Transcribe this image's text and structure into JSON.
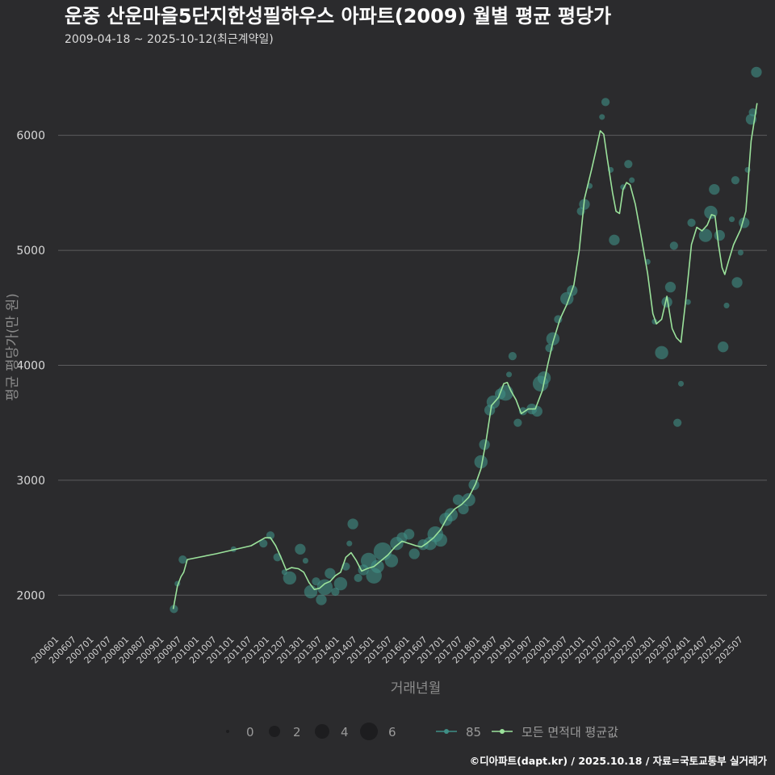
{
  "chart_data": {
    "type": "scatter",
    "title": "운중 산운마을5단지한성필하우스 아파트(2009) 월별 평균 평당가",
    "subtitle": "2009-04-18 ~ 2025-10-12(최근계약일)",
    "xlabel": "거래년월",
    "ylabel": "평균 평당가(만 원)",
    "yticks": [
      2000,
      3000,
      4000,
      5000,
      6000
    ],
    "ylim": [
      1700,
      6700
    ],
    "xlim": [
      2006.0,
      2026.2
    ],
    "xticks": [
      "200601",
      "200607",
      "200701",
      "200707",
      "200801",
      "200807",
      "200901",
      "200907",
      "201001",
      "201007",
      "201101",
      "201107",
      "201201",
      "201207",
      "201301",
      "201307",
      "201401",
      "201407",
      "201501",
      "201507",
      "201601",
      "201607",
      "201701",
      "201707",
      "201801",
      "201807",
      "201901",
      "201907",
      "202001",
      "202007",
      "202101",
      "202107",
      "202201",
      "202207",
      "202301",
      "202307",
      "202401",
      "202407",
      "202501",
      "202507"
    ],
    "grid": "horizontal",
    "colors": {
      "background": "#2b2b2d",
      "grid": "#5c5c5e",
      "points": "#3f8f86",
      "line": "#9be29b",
      "title": "#ffffff"
    },
    "size_legend": {
      "values": [
        "0",
        "2",
        "4",
        "6"
      ]
    },
    "legend": {
      "series": "85",
      "average_line": "모든 면적대 평균값",
      "position": "bottom"
    },
    "series": [
      {
        "name": "85",
        "points": [
          {
            "x": 2009.3,
            "y": 1880,
            "n": 2
          },
          {
            "x": 2009.4,
            "y": 2100,
            "n": 1
          },
          {
            "x": 2009.55,
            "y": 2310,
            "n": 2
          },
          {
            "x": 2011.0,
            "y": 2400,
            "n": 1
          },
          {
            "x": 2011.85,
            "y": 2450,
            "n": 2
          },
          {
            "x": 2012.05,
            "y": 2520,
            "n": 2
          },
          {
            "x": 2012.25,
            "y": 2330,
            "n": 2
          },
          {
            "x": 2012.45,
            "y": 2200,
            "n": 1
          },
          {
            "x": 2012.6,
            "y": 2150,
            "n": 4
          },
          {
            "x": 2012.9,
            "y": 2400,
            "n": 3
          },
          {
            "x": 2013.05,
            "y": 2300,
            "n": 1
          },
          {
            "x": 2013.2,
            "y": 2030,
            "n": 4
          },
          {
            "x": 2013.35,
            "y": 2120,
            "n": 2
          },
          {
            "x": 2013.5,
            "y": 1960,
            "n": 3
          },
          {
            "x": 2013.6,
            "y": 2070,
            "n": 5
          },
          {
            "x": 2013.75,
            "y": 2190,
            "n": 3
          },
          {
            "x": 2013.9,
            "y": 2030,
            "n": 2
          },
          {
            "x": 2014.05,
            "y": 2100,
            "n": 4
          },
          {
            "x": 2014.2,
            "y": 2250,
            "n": 2
          },
          {
            "x": 2014.3,
            "y": 2450,
            "n": 1
          },
          {
            "x": 2014.4,
            "y": 2620,
            "n": 3
          },
          {
            "x": 2014.55,
            "y": 2150,
            "n": 2
          },
          {
            "x": 2014.7,
            "y": 2220,
            "n": 3
          },
          {
            "x": 2014.85,
            "y": 2300,
            "n": 5
          },
          {
            "x": 2015.0,
            "y": 2170,
            "n": 5
          },
          {
            "x": 2015.1,
            "y": 2250,
            "n": 4
          },
          {
            "x": 2015.25,
            "y": 2380,
            "n": 6
          },
          {
            "x": 2015.5,
            "y": 2300,
            "n": 4
          },
          {
            "x": 2015.65,
            "y": 2450,
            "n": 4
          },
          {
            "x": 2015.8,
            "y": 2500,
            "n": 3
          },
          {
            "x": 2016.0,
            "y": 2530,
            "n": 3
          },
          {
            "x": 2016.15,
            "y": 2360,
            "n": 3
          },
          {
            "x": 2016.4,
            "y": 2440,
            "n": 3
          },
          {
            "x": 2016.6,
            "y": 2450,
            "n": 4
          },
          {
            "x": 2016.75,
            "y": 2530,
            "n": 5
          },
          {
            "x": 2016.9,
            "y": 2480,
            "n": 4
          },
          {
            "x": 2017.05,
            "y": 2660,
            "n": 4
          },
          {
            "x": 2017.2,
            "y": 2700,
            "n": 4
          },
          {
            "x": 2017.4,
            "y": 2830,
            "n": 3
          },
          {
            "x": 2017.55,
            "y": 2750,
            "n": 3
          },
          {
            "x": 2017.7,
            "y": 2830,
            "n": 4
          },
          {
            "x": 2017.85,
            "y": 2960,
            "n": 3
          },
          {
            "x": 2018.05,
            "y": 3160,
            "n": 4
          },
          {
            "x": 2018.15,
            "y": 3310,
            "n": 3
          },
          {
            "x": 2018.3,
            "y": 3610,
            "n": 3
          },
          {
            "x": 2018.4,
            "y": 3680,
            "n": 4
          },
          {
            "x": 2018.6,
            "y": 3750,
            "n": 3
          },
          {
            "x": 2018.75,
            "y": 3760,
            "n": 5
          },
          {
            "x": 2018.85,
            "y": 3920,
            "n": 1
          },
          {
            "x": 2018.95,
            "y": 4080,
            "n": 2
          },
          {
            "x": 2019.1,
            "y": 3500,
            "n": 2
          },
          {
            "x": 2019.25,
            "y": 3600,
            "n": 2
          },
          {
            "x": 2019.5,
            "y": 3620,
            "n": 3
          },
          {
            "x": 2019.65,
            "y": 3600,
            "n": 3
          },
          {
            "x": 2019.75,
            "y": 3840,
            "n": 5
          },
          {
            "x": 2019.85,
            "y": 3890,
            "n": 4
          },
          {
            "x": 2020.0,
            "y": 4150,
            "n": 2
          },
          {
            "x": 2020.1,
            "y": 4230,
            "n": 4
          },
          {
            "x": 2020.25,
            "y": 4400,
            "n": 2
          },
          {
            "x": 2020.5,
            "y": 4580,
            "n": 4
          },
          {
            "x": 2020.65,
            "y": 4650,
            "n": 3
          },
          {
            "x": 2020.9,
            "y": 5340,
            "n": 2
          },
          {
            "x": 2021.0,
            "y": 5400,
            "n": 3
          },
          {
            "x": 2021.15,
            "y": 5560,
            "n": 1
          },
          {
            "x": 2021.5,
            "y": 6160,
            "n": 1
          },
          {
            "x": 2021.6,
            "y": 6290,
            "n": 2
          },
          {
            "x": 2021.75,
            "y": 5700,
            "n": 1
          },
          {
            "x": 2021.85,
            "y": 5090,
            "n": 3
          },
          {
            "x": 2022.1,
            "y": 5550,
            "n": 1
          },
          {
            "x": 2022.25,
            "y": 5750,
            "n": 2
          },
          {
            "x": 2022.35,
            "y": 5610,
            "n": 1
          },
          {
            "x": 2022.8,
            "y": 4900,
            "n": 1
          },
          {
            "x": 2023.0,
            "y": 4380,
            "n": 1
          },
          {
            "x": 2023.2,
            "y": 4110,
            "n": 4
          },
          {
            "x": 2023.35,
            "y": 4550,
            "n": 3
          },
          {
            "x": 2023.45,
            "y": 4680,
            "n": 3
          },
          {
            "x": 2023.55,
            "y": 5040,
            "n": 2
          },
          {
            "x": 2023.65,
            "y": 3500,
            "n": 2
          },
          {
            "x": 2023.75,
            "y": 3840,
            "n": 1
          },
          {
            "x": 2023.95,
            "y": 4550,
            "n": 1
          },
          {
            "x": 2024.05,
            "y": 5240,
            "n": 2
          },
          {
            "x": 2024.45,
            "y": 5130,
            "n": 4
          },
          {
            "x": 2024.6,
            "y": 5330,
            "n": 4
          },
          {
            "x": 2024.7,
            "y": 5530,
            "n": 3
          },
          {
            "x": 2024.85,
            "y": 5130,
            "n": 3
          },
          {
            "x": 2024.95,
            "y": 4160,
            "n": 3
          },
          {
            "x": 2025.05,
            "y": 4520,
            "n": 1
          },
          {
            "x": 2025.2,
            "y": 5270,
            "n": 1
          },
          {
            "x": 2025.3,
            "y": 5610,
            "n": 2
          },
          {
            "x": 2025.35,
            "y": 4720,
            "n": 3
          },
          {
            "x": 2025.45,
            "y": 4980,
            "n": 1
          },
          {
            "x": 2025.55,
            "y": 5240,
            "n": 3
          },
          {
            "x": 2025.65,
            "y": 5700,
            "n": 1
          },
          {
            "x": 2025.75,
            "y": 6140,
            "n": 3
          },
          {
            "x": 2025.8,
            "y": 6200,
            "n": 2
          },
          {
            "x": 2025.9,
            "y": 6550,
            "n": 3
          }
        ]
      }
    ],
    "average_line": [
      {
        "x": 2009.28,
        "y": 1880
      },
      {
        "x": 2009.4,
        "y": 2080
      },
      {
        "x": 2009.5,
        "y": 2160
      },
      {
        "x": 2009.58,
        "y": 2200
      },
      {
        "x": 2009.68,
        "y": 2310
      },
      {
        "x": 2010.5,
        "y": 2360
      },
      {
        "x": 2011.5,
        "y": 2430
      },
      {
        "x": 2011.9,
        "y": 2500
      },
      {
        "x": 2012.05,
        "y": 2500
      },
      {
        "x": 2012.2,
        "y": 2430
      },
      {
        "x": 2012.35,
        "y": 2330
      },
      {
        "x": 2012.5,
        "y": 2220
      },
      {
        "x": 2012.65,
        "y": 2240
      },
      {
        "x": 2012.85,
        "y": 2230
      },
      {
        "x": 2013.0,
        "y": 2200
      },
      {
        "x": 2013.15,
        "y": 2110
      },
      {
        "x": 2013.3,
        "y": 2050
      },
      {
        "x": 2013.45,
        "y": 2060
      },
      {
        "x": 2013.6,
        "y": 2100
      },
      {
        "x": 2013.75,
        "y": 2120
      },
      {
        "x": 2013.9,
        "y": 2170
      },
      {
        "x": 2014.05,
        "y": 2200
      },
      {
        "x": 2014.2,
        "y": 2330
      },
      {
        "x": 2014.35,
        "y": 2370
      },
      {
        "x": 2014.5,
        "y": 2300
      },
      {
        "x": 2014.65,
        "y": 2210
      },
      {
        "x": 2014.8,
        "y": 2230
      },
      {
        "x": 2015.0,
        "y": 2250
      },
      {
        "x": 2015.2,
        "y": 2300
      },
      {
        "x": 2015.4,
        "y": 2350
      },
      {
        "x": 2015.6,
        "y": 2420
      },
      {
        "x": 2015.8,
        "y": 2470
      },
      {
        "x": 2016.0,
        "y": 2450
      },
      {
        "x": 2016.2,
        "y": 2430
      },
      {
        "x": 2016.35,
        "y": 2420
      },
      {
        "x": 2016.5,
        "y": 2450
      },
      {
        "x": 2016.7,
        "y": 2500
      },
      {
        "x": 2016.9,
        "y": 2570
      },
      {
        "x": 2017.1,
        "y": 2680
      },
      {
        "x": 2017.3,
        "y": 2750
      },
      {
        "x": 2017.5,
        "y": 2790
      },
      {
        "x": 2017.7,
        "y": 2850
      },
      {
        "x": 2017.9,
        "y": 2970
      },
      {
        "x": 2018.05,
        "y": 3100
      },
      {
        "x": 2018.2,
        "y": 3350
      },
      {
        "x": 2018.35,
        "y": 3650
      },
      {
        "x": 2018.55,
        "y": 3720
      },
      {
        "x": 2018.7,
        "y": 3840
      },
      {
        "x": 2018.8,
        "y": 3850
      },
      {
        "x": 2018.9,
        "y": 3780
      },
      {
        "x": 2019.05,
        "y": 3700
      },
      {
        "x": 2019.2,
        "y": 3580
      },
      {
        "x": 2019.4,
        "y": 3620
      },
      {
        "x": 2019.6,
        "y": 3620
      },
      {
        "x": 2019.8,
        "y": 3780
      },
      {
        "x": 2019.95,
        "y": 4000
      },
      {
        "x": 2020.1,
        "y": 4200
      },
      {
        "x": 2020.3,
        "y": 4400
      },
      {
        "x": 2020.5,
        "y": 4530
      },
      {
        "x": 2020.7,
        "y": 4700
      },
      {
        "x": 2020.85,
        "y": 5000
      },
      {
        "x": 2021.0,
        "y": 5450
      },
      {
        "x": 2021.2,
        "y": 5700
      },
      {
        "x": 2021.35,
        "y": 5900
      },
      {
        "x": 2021.45,
        "y": 6040
      },
      {
        "x": 2021.55,
        "y": 6010
      },
      {
        "x": 2021.65,
        "y": 5800
      },
      {
        "x": 2021.8,
        "y": 5500
      },
      {
        "x": 2021.9,
        "y": 5340
      },
      {
        "x": 2022.0,
        "y": 5320
      },
      {
        "x": 2022.1,
        "y": 5530
      },
      {
        "x": 2022.2,
        "y": 5590
      },
      {
        "x": 2022.3,
        "y": 5570
      },
      {
        "x": 2022.45,
        "y": 5400
      },
      {
        "x": 2022.6,
        "y": 5150
      },
      {
        "x": 2022.8,
        "y": 4800
      },
      {
        "x": 2022.95,
        "y": 4450
      },
      {
        "x": 2023.05,
        "y": 4360
      },
      {
        "x": 2023.2,
        "y": 4400
      },
      {
        "x": 2023.35,
        "y": 4600
      },
      {
        "x": 2023.5,
        "y": 4320
      },
      {
        "x": 2023.62,
        "y": 4240
      },
      {
        "x": 2023.75,
        "y": 4200
      },
      {
        "x": 2023.9,
        "y": 4600
      },
      {
        "x": 2024.05,
        "y": 5050
      },
      {
        "x": 2024.2,
        "y": 5200
      },
      {
        "x": 2024.35,
        "y": 5170
      },
      {
        "x": 2024.5,
        "y": 5220
      },
      {
        "x": 2024.62,
        "y": 5310
      },
      {
        "x": 2024.72,
        "y": 5300
      },
      {
        "x": 2024.82,
        "y": 5050
      },
      {
        "x": 2024.92,
        "y": 4850
      },
      {
        "x": 2025.0,
        "y": 4790
      },
      {
        "x": 2025.1,
        "y": 4900
      },
      {
        "x": 2025.25,
        "y": 5050
      },
      {
        "x": 2025.45,
        "y": 5180
      },
      {
        "x": 2025.6,
        "y": 5340
      },
      {
        "x": 2025.75,
        "y": 5950
      },
      {
        "x": 2025.92,
        "y": 6280
      }
    ]
  },
  "caption": "©디아파트(dapt.kr) / 2025.10.18 / 자료=국토교통부 실거래가"
}
